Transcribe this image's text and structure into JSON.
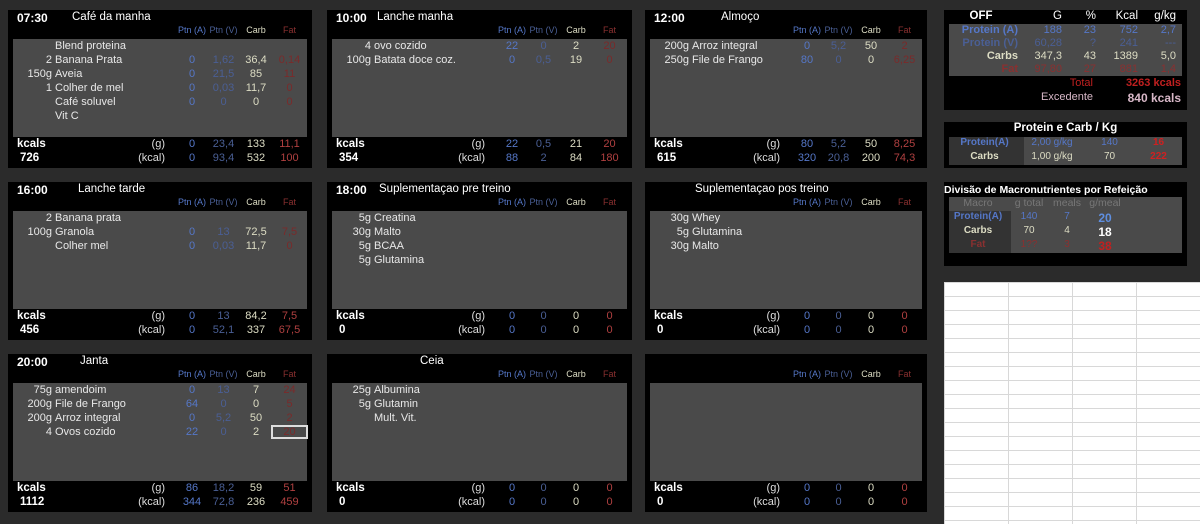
{
  "columns": {
    "ptn_a": "Ptn (A)",
    "ptn_v": "Ptn (V)",
    "carb": "Carb",
    "fat": "Fat",
    "kcals_label": "kcals",
    "g_unit": "(g)",
    "kcal_unit": "(kcal)"
  },
  "meals": [
    {
      "time": "07:30",
      "title": "Café da manha",
      "items": [
        [
          "",
          "Blend proteina",
          "",
          "",
          "",
          ""
        ],
        [
          "2",
          "Banana Prata",
          "0",
          "1,62",
          "36,4",
          "0,14"
        ],
        [
          "150g",
          "Aveia",
          "0",
          "21,5",
          "85",
          "11"
        ],
        [
          "1",
          "Colher de mel",
          "0",
          "0,03",
          "11,7",
          "0"
        ],
        [
          "",
          "Café soluvel",
          "0",
          "0",
          "0",
          "0"
        ],
        [
          "",
          "Vit C",
          "",
          "",
          "",
          ""
        ]
      ],
      "total_g": [
        "0",
        "23,4",
        "133",
        "11,1"
      ],
      "total_kcal": [
        "0",
        "93,4",
        "532",
        "100"
      ],
      "kcals": "726"
    },
    {
      "time": "10:00",
      "title": "Lanche manha",
      "items": [
        [
          "4",
          "ovo cozido",
          "22",
          "0",
          "2",
          "20"
        ],
        [
          "100g",
          "Batata doce coz.",
          "0",
          "0,5",
          "19",
          "0"
        ]
      ],
      "total_g": [
        "22",
        "0,5",
        "21",
        "20"
      ],
      "total_kcal": [
        "88",
        "2",
        "84",
        "180"
      ],
      "kcals": "354"
    },
    {
      "time": "12:00",
      "title": "Almoço",
      "items": [
        [
          "200g",
          "Arroz integral",
          "0",
          "5,2",
          "50",
          "2"
        ],
        [
          "250g",
          "File de Frango",
          "80",
          "0",
          "0",
          "6,25"
        ]
      ],
      "total_g": [
        "80",
        "5,2",
        "50",
        "8,25"
      ],
      "total_kcal": [
        "320",
        "20,8",
        "200",
        "74,3"
      ],
      "kcals": "615"
    },
    {
      "time": "16:00",
      "title": "Lanche tarde",
      "items": [
        [
          "2",
          "Banana prata",
          "",
          "",
          "",
          ""
        ],
        [
          "100g",
          "Granola",
          "0",
          "13",
          "72,5",
          "7,5"
        ],
        [
          "",
          "Colher mel",
          "0",
          "0,03",
          "11,7",
          "0"
        ]
      ],
      "total_g": [
        "0",
        "13",
        "84,2",
        "7,5"
      ],
      "total_kcal": [
        "0",
        "52,1",
        "337",
        "67,5"
      ],
      "kcals": "456"
    },
    {
      "time": "18:00",
      "title": "Suplementaçao pre treino",
      "items": [
        [
          "5g",
          "Creatina",
          "",
          "",
          "",
          ""
        ],
        [
          "30g",
          "Malto",
          "",
          "",
          "",
          ""
        ],
        [
          "5g",
          "BCAA",
          "",
          "",
          "",
          ""
        ],
        [
          "5g",
          "Glutamina",
          "",
          "",
          "",
          ""
        ]
      ],
      "total_g": [
        "0",
        "0",
        "0",
        "0"
      ],
      "total_kcal": [
        "0",
        "0",
        "0",
        "0"
      ],
      "kcals": "0"
    },
    {
      "time": "",
      "title": "Suplementaçao pos treino",
      "items": [
        [
          "30g",
          "Whey",
          "",
          "",
          "",
          ""
        ],
        [
          "5g",
          "Glutamina",
          "",
          "",
          "",
          ""
        ],
        [
          "30g",
          "Malto",
          "",
          "",
          "",
          ""
        ]
      ],
      "total_g": [
        "0",
        "0",
        "0",
        "0"
      ],
      "total_kcal": [
        "0",
        "0",
        "0",
        "0"
      ],
      "kcals": "0"
    },
    {
      "time": "20:00",
      "title": "Janta",
      "items": [
        [
          "75g",
          "amendoim",
          "0",
          "13",
          "7",
          "24"
        ],
        [
          "200g",
          "File de Frango",
          "64",
          "0",
          "0",
          "5"
        ],
        [
          "200g",
          "Arroz integral",
          "0",
          "5,2",
          "50",
          "2"
        ],
        [
          "4",
          "Ovos cozido",
          "22",
          "0",
          "2",
          "20"
        ]
      ],
      "total_g": [
        "86",
        "18,2",
        "59",
        "51"
      ],
      "total_kcal": [
        "344",
        "72,8",
        "236",
        "459"
      ],
      "kcals": "1112"
    },
    {
      "time": "",
      "title": "Ceia",
      "items": [
        [
          "25g",
          "Albumina",
          "",
          "",
          "",
          ""
        ],
        [
          "5g",
          "Glutamin",
          "",
          "",
          "",
          ""
        ],
        [
          "",
          "Mult. Vit.",
          "",
          "",
          "",
          ""
        ]
      ],
      "total_g": [
        "0",
        "0",
        "0",
        "0"
      ],
      "total_kcal": [
        "0",
        "0",
        "0",
        "0"
      ],
      "kcals": "0"
    },
    {
      "time": "",
      "title": "",
      "items": [],
      "total_g": [
        "0",
        "0",
        "0",
        "0"
      ],
      "total_kcal": [
        "0",
        "0",
        "0",
        "0"
      ],
      "kcals": "0"
    }
  ],
  "summary": {
    "headers": [
      "OFF",
      "G",
      "%",
      "Kcal",
      "g/kg"
    ],
    "rows": [
      [
        "Protein (A)",
        "188",
        "23",
        "752",
        "2,7"
      ],
      [
        "Protein (V)",
        "60,28",
        "?",
        "241",
        "---"
      ],
      [
        "Carbs",
        "347,3",
        "43",
        "1389",
        "5,0"
      ],
      [
        "Fat",
        "97,80",
        "27",
        "881",
        "1,4"
      ]
    ],
    "total_label": "Total",
    "total_value": "3263 kcals",
    "excess_label": "Excedente",
    "excess_value": "840 kcals"
  },
  "per_kg": {
    "title": "Protein e Carb / Kg",
    "rows": [
      [
        "Protein(A)",
        "2,00 g/kg",
        "140",
        "16"
      ],
      [
        "Carbs",
        "1,00 g/kg",
        "70",
        "222"
      ]
    ]
  },
  "division": {
    "title": "Divisão de Macronutrientes por Refeição",
    "headers": [
      "Macro",
      "g total",
      "meals",
      "g/meal"
    ],
    "rows": [
      [
        "Protein(A)",
        "140",
        "7",
        "20"
      ],
      [
        "Carbs",
        "70",
        "4",
        "18"
      ],
      [
        "Fat",
        "1??",
        "3",
        "38"
      ]
    ]
  },
  "colors": {
    "protein": "#5577c8",
    "carb": "#ddddc4",
    "fat": "#b04040",
    "panel": "#000000",
    "cells": "#4a4a4a"
  }
}
